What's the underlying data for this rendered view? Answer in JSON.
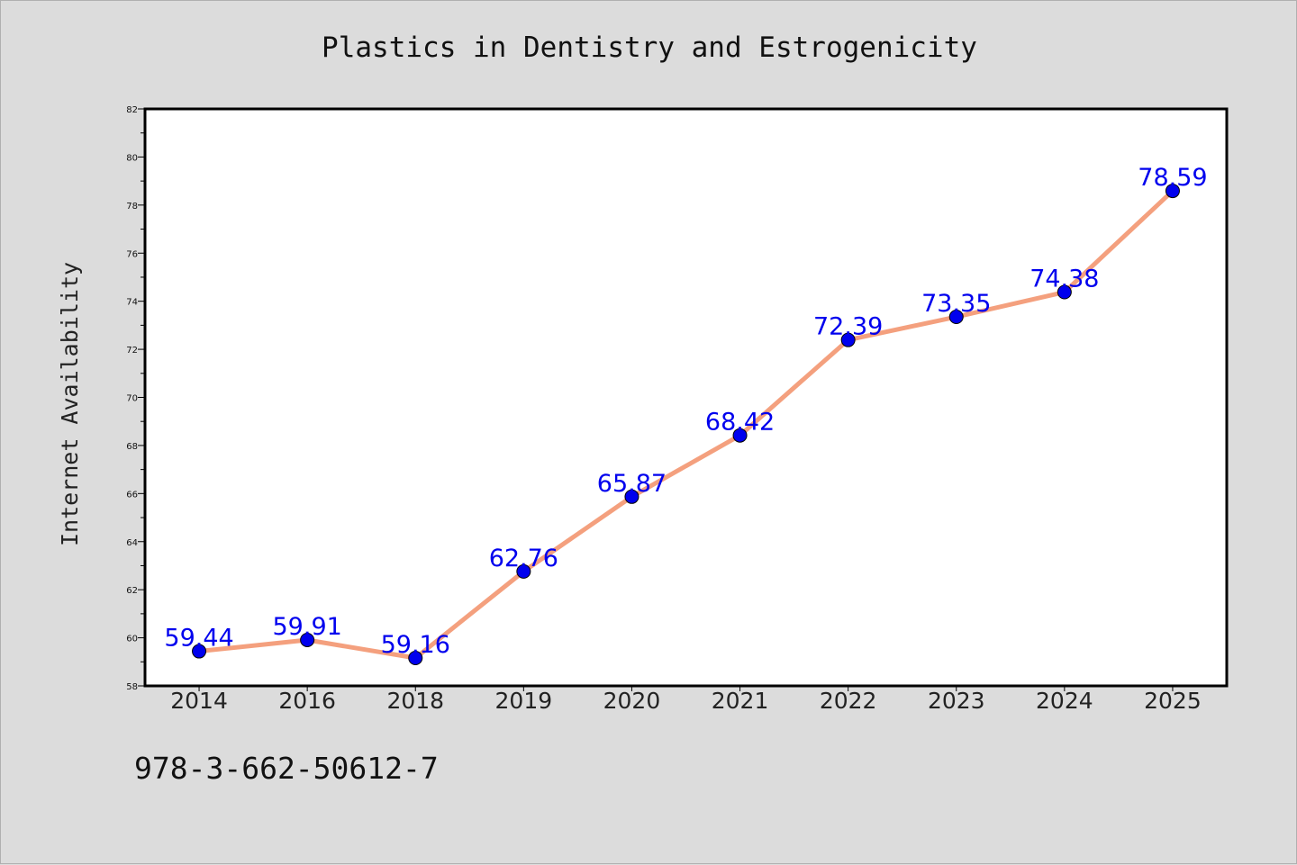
{
  "chart_data": {
    "type": "line",
    "title": "Plastics in Dentistry and Estrogenicity",
    "xlabel": "",
    "ylabel": "Internet Availability",
    "categories": [
      "2014",
      "2016",
      "2018",
      "2019",
      "2020",
      "2021",
      "2022",
      "2023",
      "2024",
      "2025"
    ],
    "series": [
      {
        "values": [
          59.44,
          59.91,
          59.16,
          62.76,
          65.87,
          68.42,
          72.39,
          73.35,
          74.38,
          78.59
        ],
        "labels": [
          "59.44",
          "59.91",
          "59.16",
          "62.76",
          "65.87",
          "68.42",
          "72.39",
          "73.35",
          "74.38",
          "78.59"
        ],
        "line_color": "#f4a07e",
        "marker_color": "#0000ee"
      }
    ],
    "ylim": [
      58,
      82
    ],
    "yticks": [
      "58",
      "60",
      "62",
      "64",
      "66",
      "68",
      "70",
      "72",
      "74",
      "76",
      "78",
      "80",
      "82"
    ],
    "grid": false,
    "legend": "none"
  },
  "footer_text": "978-3-662-50612-7",
  "colors": {
    "background": "#dcdcdc",
    "plot_background": "#ffffff",
    "axis": "#000000"
  }
}
